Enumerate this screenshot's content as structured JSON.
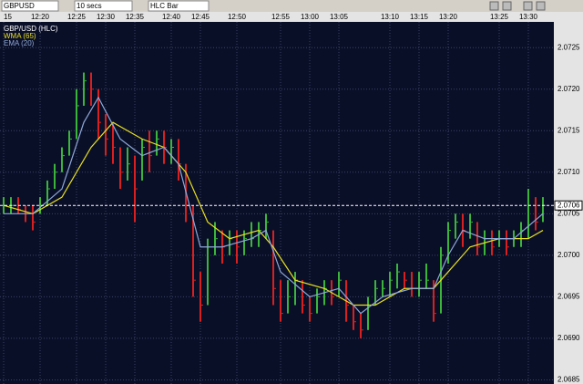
{
  "toolbar": {
    "symbol": "GBPUSD",
    "interval": "10 secs",
    "bar_type": "HLC Bar"
  },
  "chart_data": {
    "type": "hlc",
    "series": [
      {
        "name": "GBP/USD (HLC)",
        "high": [
          2.0707,
          2.0707,
          2.0707,
          2.0706,
          2.0706,
          2.0707,
          2.0709,
          2.0711,
          2.0713,
          2.0715,
          2.072,
          2.0722,
          2.0722,
          2.072,
          2.0717,
          2.0716,
          2.0713,
          2.0713,
          2.0712,
          2.0714,
          2.0715,
          2.0715,
          2.0715,
          2.0714,
          2.0714,
          2.0711,
          2.0706,
          2.0698,
          2.0702,
          2.0704,
          2.0703,
          2.0703,
          2.0703,
          2.0703,
          2.0704,
          2.0704,
          2.0705,
          2.0703,
          2.0697,
          2.0697,
          2.0698,
          2.0697,
          2.0695,
          2.0696,
          2.0697,
          2.0697,
          2.0698,
          2.0697,
          2.0694,
          2.0693,
          2.0695,
          2.0697,
          2.0697,
          2.0698,
          2.0699,
          2.0698,
          2.0698,
          2.0698,
          2.0699,
          2.0697,
          2.0701,
          2.0704,
          2.0705,
          2.0705,
          2.0705,
          2.0704,
          2.0703,
          2.0703,
          2.0703,
          2.0703,
          2.0703,
          2.0704,
          2.0708,
          2.0707,
          2.0707
        ],
        "low": [
          2.0705,
          2.0705,
          2.0705,
          2.0704,
          2.0703,
          2.0705,
          2.0706,
          2.0708,
          2.071,
          2.0712,
          2.0714,
          2.0718,
          2.0718,
          2.0714,
          2.0712,
          2.0711,
          2.0708,
          2.0709,
          2.0704,
          2.0709,
          2.071,
          2.0712,
          2.0711,
          2.0711,
          2.0709,
          2.0704,
          2.0695,
          2.0692,
          2.0694,
          2.07,
          2.0699,
          2.07,
          2.0699,
          2.07,
          2.0701,
          2.0701,
          2.0702,
          2.0694,
          2.0692,
          2.0693,
          2.0694,
          2.0693,
          2.0692,
          2.0693,
          2.0694,
          2.0694,
          2.0695,
          2.0692,
          2.0691,
          2.069,
          2.0691,
          2.0694,
          2.0695,
          2.0695,
          2.0696,
          2.0696,
          2.0695,
          2.0695,
          2.0696,
          2.0692,
          2.0693,
          2.0699,
          2.0702,
          2.0701,
          2.0702,
          2.07,
          2.07,
          2.07,
          2.0701,
          2.07,
          2.0701,
          2.0701,
          2.0702,
          2.0703,
          2.0704
        ],
        "close": [
          2.0706,
          2.0706,
          2.07055,
          2.0705,
          2.0704,
          2.0706,
          2.0708,
          2.071,
          2.0712,
          2.0714,
          2.0718,
          2.0721,
          2.072,
          2.0716,
          2.0714,
          2.0713,
          2.071,
          2.0711,
          2.0708,
          2.0713,
          2.0712,
          2.0714,
          2.0713,
          2.0713,
          2.0711,
          2.0706,
          2.0697,
          2.0694,
          2.0701,
          2.0702,
          2.0701,
          2.0702,
          2.0701,
          2.0702,
          2.0702,
          2.0703,
          2.0704,
          2.0696,
          2.0693,
          2.0695,
          2.0697,
          2.0694,
          2.0693,
          2.0695,
          2.0696,
          2.0695,
          2.0697,
          2.0694,
          2.0692,
          2.0691,
          2.0694,
          2.0696,
          2.0696,
          2.0697,
          2.0698,
          2.0697,
          2.0696,
          2.0697,
          2.0697,
          2.0693,
          2.07,
          2.0703,
          2.0704,
          2.0703,
          2.0704,
          2.0701,
          2.0702,
          2.0701,
          2.0702,
          2.0701,
          2.0702,
          2.0703,
          2.0706,
          2.0704,
          2.0706
        ]
      },
      {
        "name": "WMA (65)",
        "color": "#e8e020",
        "x": [
          0,
          4,
          8,
          12,
          15,
          19,
          22,
          25,
          28,
          31,
          35,
          37,
          40,
          44,
          48,
          51,
          55,
          59,
          61,
          64,
          68,
          72,
          74
        ],
        "values": [
          2.0706,
          2.0705,
          2.0707,
          2.0713,
          2.0716,
          2.0714,
          2.0713,
          2.071,
          2.0704,
          2.0702,
          2.0703,
          2.0701,
          2.0697,
          2.0696,
          2.0694,
          2.0694,
          2.0696,
          2.0696,
          2.0698,
          2.0701,
          2.0702,
          2.0702,
          2.0703
        ]
      },
      {
        "name": "EMA (20)",
        "color": "#8fa8d8",
        "x": [
          0,
          4,
          8,
          11,
          13,
          16,
          19,
          22,
          24,
          27,
          30,
          34,
          36,
          38,
          42,
          46,
          49,
          52,
          56,
          59,
          61,
          63,
          66,
          70,
          74
        ],
        "values": [
          2.0705,
          2.0705,
          2.0708,
          2.0716,
          2.0719,
          2.0714,
          2.0712,
          2.0713,
          2.0711,
          2.0701,
          2.0701,
          2.0702,
          2.0703,
          2.0698,
          2.0695,
          2.0696,
          2.0693,
          2.0695,
          2.0696,
          2.0696,
          2.07,
          2.0703,
          2.0702,
          2.0702,
          2.0705
        ]
      }
    ],
    "up_color": "#3cb43c",
    "down_color": "#d82020",
    "last_price": 2.0706,
    "xlim": [
      -0.5,
      75.5
    ],
    "xticks": [
      {
        "value": 0,
        "label": "15"
      },
      {
        "value": 5,
        "label": "12:20"
      },
      {
        "value": 10,
        "label": "12:25"
      },
      {
        "value": 14,
        "label": "12:30"
      },
      {
        "value": 18,
        "label": "12:35"
      },
      {
        "value": 23,
        "label": "12:40"
      },
      {
        "value": 27,
        "label": "12:45"
      },
      {
        "value": 32,
        "label": "12:50"
      },
      {
        "value": 38,
        "label": "12:55"
      },
      {
        "value": 42,
        "label": "13:00"
      },
      {
        "value": 46,
        "label": "13:05"
      },
      {
        "value": 53,
        "label": "13:10"
      },
      {
        "value": 57,
        "label": "13:15"
      },
      {
        "value": 61,
        "label": "13:20"
      },
      {
        "value": 68,
        "label": "13:25"
      },
      {
        "value": 72,
        "label": "13:30"
      }
    ],
    "ylim": [
      2.06845,
      2.07281
    ],
    "yticks": [
      2.0725,
      {
        "value": 2.072,
        "label": "2.0720"
      },
      2.0715,
      {
        "value": 2.071,
        "label": "2.0710"
      },
      2.0705,
      {
        "value": 2.07,
        "label": "2.0700"
      },
      2.0695,
      {
        "value": 2.069,
        "label": "2.0690"
      },
      2.0685
    ],
    "grid": true
  }
}
